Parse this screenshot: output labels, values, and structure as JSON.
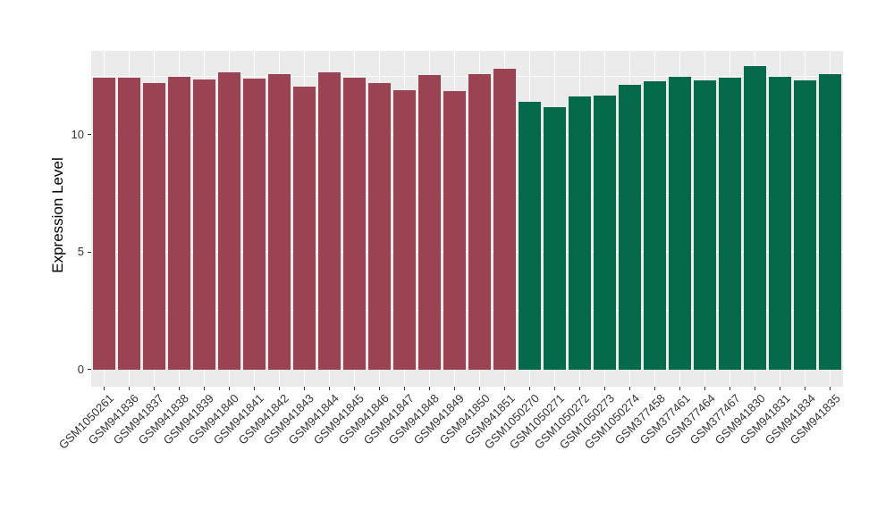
{
  "style": {
    "background": "#FFFFFF",
    "panel_bg": "#EBEBEB",
    "grid_color": "#FFFFFF",
    "axis_text_color": "#333333",
    "axis_title_color": "#000000"
  },
  "chart_data": {
    "type": "bar",
    "title": "",
    "xlabel": "",
    "ylabel": "Expression Level",
    "yticks": [
      0,
      5,
      10
    ],
    "grid_minor": [
      2.5,
      7.5,
      12.5
    ],
    "ylim": [
      0,
      13.57
    ],
    "legend": "none",
    "group_colors": [
      "#9A4353",
      "#04684A"
    ],
    "categories": [
      "GSM1050261",
      "GSM941836",
      "GSM941837",
      "GSM941838",
      "GSM941839",
      "GSM941840",
      "GSM941841",
      "GSM941842",
      "GSM941843",
      "GSM941844",
      "GSM941845",
      "GSM941846",
      "GSM941847",
      "GSM941848",
      "GSM941849",
      "GSM941850",
      "GSM941851",
      "GSM1050270",
      "GSM1050271",
      "GSM1050272",
      "GSM1050273",
      "GSM1050274",
      "GSM377458",
      "GSM377461",
      "GSM377464",
      "GSM377467",
      "GSM941830",
      "GSM941831",
      "GSM941834",
      "GSM941835"
    ],
    "values": [
      12.42,
      12.42,
      12.21,
      12.48,
      12.35,
      12.68,
      12.41,
      12.6,
      12.05,
      12.67,
      12.43,
      12.22,
      11.9,
      12.56,
      11.86,
      12.57,
      12.82,
      11.39,
      11.18,
      11.62,
      11.68,
      12.12,
      12.27,
      12.46,
      12.33,
      12.42,
      12.94,
      12.49,
      12.32,
      12.57
    ],
    "group_index": [
      0,
      0,
      0,
      0,
      0,
      0,
      0,
      0,
      0,
      0,
      0,
      0,
      0,
      0,
      0,
      0,
      0,
      1,
      1,
      1,
      1,
      1,
      1,
      1,
      1,
      1,
      1,
      1,
      1,
      1
    ]
  }
}
